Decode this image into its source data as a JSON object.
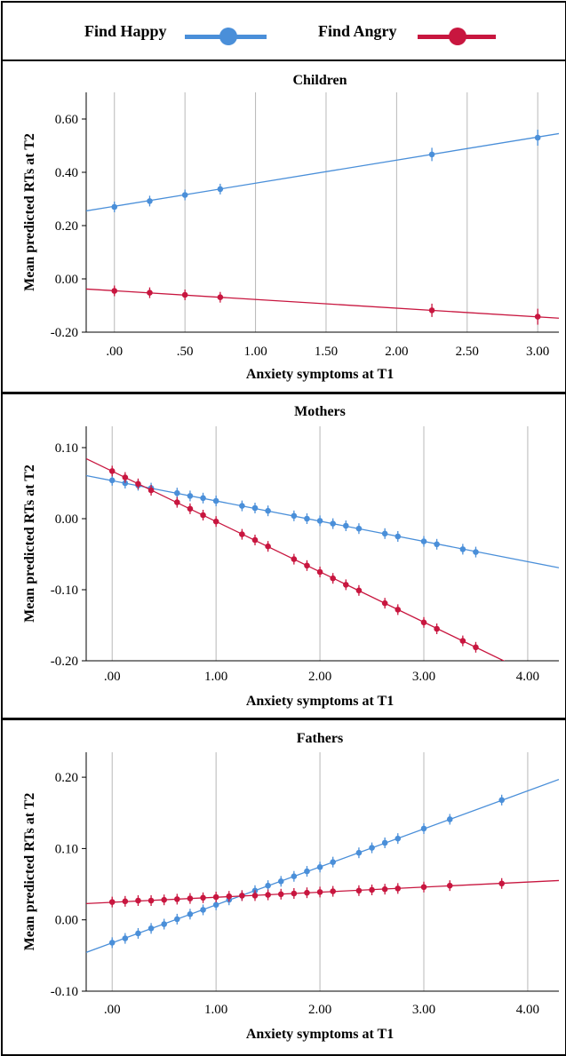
{
  "legend": {
    "happy_label": "Find Happy",
    "angry_label": "Find Angry",
    "happy_color": "#4a8fd9",
    "angry_color": "#c8163f"
  },
  "chart_data": [
    {
      "type": "line",
      "title": "Children",
      "xlabel": "Anxiety symptoms at T1",
      "ylabel": "Mean predicted RTs at T2",
      "xlim": [
        -0.2,
        3.15
      ],
      "ylim": [
        -0.2,
        0.7
      ],
      "xticks": [
        0,
        0.5,
        1,
        1.5,
        2,
        2.5,
        3
      ],
      "xtick_labels": [
        ".00",
        ".50",
        "1.00",
        "1.50",
        "2.00",
        "2.50",
        "3.00"
      ],
      "yticks": [
        -0.2,
        0,
        0.2,
        0.4,
        0.6
      ],
      "ytick_labels": [
        "-0.20",
        "0.00",
        "0.20",
        "0.40",
        "0.60"
      ],
      "grid": "vertical",
      "series": [
        {
          "name": "Find Happy",
          "fit_line": {
            "slope": 0.0866,
            "intercept": 0.2725
          },
          "points": [
            {
              "x": 0.0,
              "y": 0.27,
              "err": 0.01
            },
            {
              "x": 0.25,
              "y": 0.292,
              "err": 0.008
            },
            {
              "x": 0.5,
              "y": 0.315,
              "err": 0.01
            },
            {
              "x": 0.75,
              "y": 0.337,
              "err": 0.02
            },
            {
              "x": 2.25,
              "y": 0.467,
              "err": 0.025
            },
            {
              "x": 3.0,
              "y": 0.53,
              "err": 0.03
            }
          ]
        },
        {
          "name": "Find Angry",
          "fit_line": {
            "slope": -0.0327,
            "intercept": -0.0446
          },
          "points": [
            {
              "x": 0.0,
              "y": -0.045,
              "err": 0.006
            },
            {
              "x": 0.25,
              "y": -0.052,
              "err": 0.008
            },
            {
              "x": 0.5,
              "y": -0.06,
              "err": 0.01
            },
            {
              "x": 0.75,
              "y": -0.069,
              "err": 0.02
            },
            {
              "x": 2.25,
              "y": -0.118,
              "err": 0.025
            },
            {
              "x": 3.0,
              "y": -0.142,
              "err": 0.03
            }
          ]
        }
      ]
    },
    {
      "type": "line",
      "title": "Mothers",
      "xlabel": "Anxiety symptoms at T1",
      "ylabel": "Mean predicted RTs at T2",
      "xlim": [
        -0.25,
        4.3
      ],
      "ylim": [
        -0.2,
        0.13
      ],
      "xticks": [
        0,
        1,
        2,
        3,
        4
      ],
      "xtick_labels": [
        ".00",
        "1.00",
        "2.00",
        "3.00",
        "4.00"
      ],
      "yticks": [
        -0.2,
        -0.1,
        0,
        0.1
      ],
      "ytick_labels": [
        "-0.20",
        "-0.10",
        "0.00",
        "0.10"
      ],
      "grid": "vertical",
      "series": [
        {
          "name": "Find Happy",
          "fit_line": {
            "slope": -0.0285,
            "intercept": 0.0535
          },
          "points": [
            {
              "x": 0.0,
              "y": 0.054
            },
            {
              "x": 0.125,
              "y": 0.05
            },
            {
              "x": 0.25,
              "y": 0.047
            },
            {
              "x": 0.375,
              "y": 0.043
            },
            {
              "x": 0.625,
              "y": 0.036
            },
            {
              "x": 0.75,
              "y": 0.032
            },
            {
              "x": 0.875,
              "y": 0.029
            },
            {
              "x": 1.0,
              "y": 0.025
            },
            {
              "x": 1.25,
              "y": 0.018
            },
            {
              "x": 1.375,
              "y": 0.015
            },
            {
              "x": 1.5,
              "y": 0.011
            },
            {
              "x": 1.75,
              "y": 0.004
            },
            {
              "x": 1.875,
              "y": 0.0
            },
            {
              "x": 2.0,
              "y": -0.003
            },
            {
              "x": 2.125,
              "y": -0.007
            },
            {
              "x": 2.25,
              "y": -0.01
            },
            {
              "x": 2.375,
              "y": -0.014
            },
            {
              "x": 2.625,
              "y": -0.021
            },
            {
              "x": 2.75,
              "y": -0.025
            },
            {
              "x": 3.0,
              "y": -0.032
            },
            {
              "x": 3.125,
              "y": -0.036
            },
            {
              "x": 3.375,
              "y": -0.043
            },
            {
              "x": 3.5,
              "y": -0.047
            }
          ]
        },
        {
          "name": "Find Angry",
          "fit_line": {
            "slope": -0.0708,
            "intercept": 0.0668
          },
          "points": [
            {
              "x": 0.0,
              "y": 0.067
            },
            {
              "x": 0.125,
              "y": 0.058
            },
            {
              "x": 0.25,
              "y": 0.049
            },
            {
              "x": 0.375,
              "y": 0.04
            },
            {
              "x": 0.625,
              "y": 0.023
            },
            {
              "x": 0.75,
              "y": 0.014
            },
            {
              "x": 0.875,
              "y": 0.005
            },
            {
              "x": 1.0,
              "y": -0.004
            },
            {
              "x": 1.25,
              "y": -0.022
            },
            {
              "x": 1.375,
              "y": -0.03
            },
            {
              "x": 1.5,
              "y": -0.039
            },
            {
              "x": 1.75,
              "y": -0.057
            },
            {
              "x": 1.875,
              "y": -0.066
            },
            {
              "x": 2.0,
              "y": -0.075
            },
            {
              "x": 2.125,
              "y": -0.084
            },
            {
              "x": 2.25,
              "y": -0.093
            },
            {
              "x": 2.375,
              "y": -0.101
            },
            {
              "x": 2.625,
              "y": -0.119
            },
            {
              "x": 2.75,
              "y": -0.128
            },
            {
              "x": 3.0,
              "y": -0.146
            },
            {
              "x": 3.125,
              "y": -0.155
            },
            {
              "x": 3.375,
              "y": -0.172
            },
            {
              "x": 3.5,
              "y": -0.181
            }
          ]
        }
      ]
    },
    {
      "type": "line",
      "title": "Fathers",
      "xlabel": "Anxiety symptoms at T1",
      "ylabel": "Mean predicted RTs at T2",
      "xlim": [
        -0.25,
        4.3
      ],
      "ylim": [
        -0.1,
        0.235
      ],
      "xticks": [
        0,
        1,
        2,
        3,
        4
      ],
      "xtick_labels": [
        ".00",
        "1.00",
        "2.00",
        "3.00",
        "4.00"
      ],
      "yticks": [
        -0.1,
        0,
        0.1,
        0.2
      ],
      "ytick_labels": [
        "-0.10",
        "0.00",
        "0.10",
        "0.20"
      ],
      "grid": "vertical",
      "series": [
        {
          "name": "Find Happy",
          "fit_line": {
            "slope": 0.0533,
            "intercept": -0.0323
          },
          "points": [
            {
              "x": 0.0,
              "y": -0.032
            },
            {
              "x": 0.125,
              "y": -0.026
            },
            {
              "x": 0.25,
              "y": -0.019
            },
            {
              "x": 0.375,
              "y": -0.012
            },
            {
              "x": 0.5,
              "y": -0.006
            },
            {
              "x": 0.625,
              "y": 0.001
            },
            {
              "x": 0.75,
              "y": 0.008
            },
            {
              "x": 0.875,
              "y": 0.014
            },
            {
              "x": 1.0,
              "y": 0.021
            },
            {
              "x": 1.125,
              "y": 0.028
            },
            {
              "x": 1.25,
              "y": 0.034
            },
            {
              "x": 1.375,
              "y": 0.041
            },
            {
              "x": 1.5,
              "y": 0.048
            },
            {
              "x": 1.625,
              "y": 0.054
            },
            {
              "x": 1.75,
              "y": 0.061
            },
            {
              "x": 1.875,
              "y": 0.068
            },
            {
              "x": 2.0,
              "y": 0.074
            },
            {
              "x": 2.125,
              "y": 0.081
            },
            {
              "x": 2.375,
              "y": 0.094
            },
            {
              "x": 2.5,
              "y": 0.101
            },
            {
              "x": 2.625,
              "y": 0.108
            },
            {
              "x": 2.75,
              "y": 0.114
            },
            {
              "x": 3.0,
              "y": 0.128
            },
            {
              "x": 3.25,
              "y": 0.141
            },
            {
              "x": 3.75,
              "y": 0.168
            }
          ]
        },
        {
          "name": "Find Angry",
          "fit_line": {
            "slope": 0.0071,
            "intercept": 0.0246
          },
          "points": [
            {
              "x": 0.0,
              "y": 0.025
            },
            {
              "x": 0.125,
              "y": 0.026
            },
            {
              "x": 0.25,
              "y": 0.027
            },
            {
              "x": 0.375,
              "y": 0.027
            },
            {
              "x": 0.5,
              "y": 0.028
            },
            {
              "x": 0.625,
              "y": 0.029
            },
            {
              "x": 0.75,
              "y": 0.03
            },
            {
              "x": 0.875,
              "y": 0.031
            },
            {
              "x": 1.0,
              "y": 0.032
            },
            {
              "x": 1.125,
              "y": 0.033
            },
            {
              "x": 1.25,
              "y": 0.034
            },
            {
              "x": 1.375,
              "y": 0.034
            },
            {
              "x": 1.5,
              "y": 0.035
            },
            {
              "x": 1.625,
              "y": 0.036
            },
            {
              "x": 1.75,
              "y": 0.037
            },
            {
              "x": 1.875,
              "y": 0.038
            },
            {
              "x": 2.0,
              "y": 0.039
            },
            {
              "x": 2.125,
              "y": 0.04
            },
            {
              "x": 2.375,
              "y": 0.041
            },
            {
              "x": 2.5,
              "y": 0.042
            },
            {
              "x": 2.625,
              "y": 0.043
            },
            {
              "x": 2.75,
              "y": 0.044
            },
            {
              "x": 3.0,
              "y": 0.046
            },
            {
              "x": 3.25,
              "y": 0.048
            },
            {
              "x": 3.75,
              "y": 0.051
            }
          ]
        }
      ]
    }
  ]
}
